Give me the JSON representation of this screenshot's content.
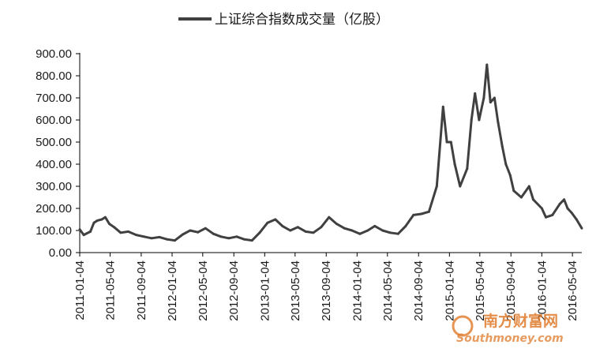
{
  "chart_data": {
    "type": "line",
    "title": "",
    "xlabel": "",
    "ylabel": "",
    "ylim": [
      0,
      900
    ],
    "yticks": [
      "0.00",
      "100.00",
      "200.00",
      "300.00",
      "400.00",
      "500.00",
      "600.00",
      "700.00",
      "800.00",
      "900.00"
    ],
    "xticks": [
      "2011-01-04",
      "2011-05-04",
      "2011-09-04",
      "2012-01-04",
      "2012-05-04",
      "2012-09-04",
      "2013-01-04",
      "2013-05-04",
      "2013-09-04",
      "2014-01-04",
      "2014-05-04",
      "2014-09-04",
      "2015-01-04",
      "2015-05-04",
      "2015-09-04",
      "2016-01-04",
      "2016-05-04"
    ],
    "x_range": [
      "2011-01-04",
      "2016-06-10"
    ],
    "grid": false,
    "legend_position": "top-center",
    "series": [
      {
        "name": "上证综合指数成交量（亿股）",
        "color": "#404040",
        "points": [
          [
            "2011-01-04",
            105
          ],
          [
            "2011-01-20",
            80
          ],
          [
            "2011-02-15",
            95
          ],
          [
            "2011-03-01",
            135
          ],
          [
            "2011-03-15",
            145
          ],
          [
            "2011-04-01",
            150
          ],
          [
            "2011-04-15",
            160
          ],
          [
            "2011-05-01",
            130
          ],
          [
            "2011-05-20",
            115
          ],
          [
            "2011-06-15",
            90
          ],
          [
            "2011-07-15",
            95
          ],
          [
            "2011-08-15",
            80
          ],
          [
            "2011-09-15",
            72
          ],
          [
            "2011-10-15",
            65
          ],
          [
            "2011-11-15",
            70
          ],
          [
            "2011-12-15",
            60
          ],
          [
            "2012-01-15",
            55
          ],
          [
            "2012-02-15",
            82
          ],
          [
            "2012-03-15",
            100
          ],
          [
            "2012-04-15",
            92
          ],
          [
            "2012-05-15",
            110
          ],
          [
            "2012-06-15",
            85
          ],
          [
            "2012-07-15",
            72
          ],
          [
            "2012-08-15",
            65
          ],
          [
            "2012-09-15",
            72
          ],
          [
            "2012-10-15",
            60
          ],
          [
            "2012-11-15",
            55
          ],
          [
            "2012-12-15",
            90
          ],
          [
            "2013-01-15",
            135
          ],
          [
            "2013-02-15",
            150
          ],
          [
            "2013-03-15",
            120
          ],
          [
            "2013-04-15",
            100
          ],
          [
            "2013-05-15",
            115
          ],
          [
            "2013-06-15",
            95
          ],
          [
            "2013-07-15",
            90
          ],
          [
            "2013-08-15",
            115
          ],
          [
            "2013-09-15",
            160
          ],
          [
            "2013-10-15",
            130
          ],
          [
            "2013-11-15",
            110
          ],
          [
            "2013-12-15",
            100
          ],
          [
            "2014-01-15",
            85
          ],
          [
            "2014-02-15",
            100
          ],
          [
            "2014-03-15",
            120
          ],
          [
            "2014-04-15",
            100
          ],
          [
            "2014-05-15",
            90
          ],
          [
            "2014-06-15",
            85
          ],
          [
            "2014-07-15",
            120
          ],
          [
            "2014-08-15",
            170
          ],
          [
            "2014-09-15",
            175
          ],
          [
            "2014-10-15",
            185
          ],
          [
            "2014-11-15",
            300
          ],
          [
            "2014-12-10",
            660
          ],
          [
            "2014-12-25",
            500
          ],
          [
            "2015-01-10",
            500
          ],
          [
            "2015-01-25",
            400
          ],
          [
            "2015-02-15",
            300
          ],
          [
            "2015-03-15",
            380
          ],
          [
            "2015-04-01",
            600
          ],
          [
            "2015-04-15",
            720
          ],
          [
            "2015-05-01",
            600
          ],
          [
            "2015-05-20",
            700
          ],
          [
            "2015-06-01",
            850
          ],
          [
            "2015-06-15",
            680
          ],
          [
            "2015-07-01",
            700
          ],
          [
            "2015-07-15",
            590
          ],
          [
            "2015-08-01",
            480
          ],
          [
            "2015-08-15",
            400
          ],
          [
            "2015-09-01",
            350
          ],
          [
            "2015-09-15",
            280
          ],
          [
            "2015-10-15",
            250
          ],
          [
            "2015-11-15",
            300
          ],
          [
            "2015-12-01",
            240
          ],
          [
            "2016-01-04",
            200
          ],
          [
            "2016-01-20",
            160
          ],
          [
            "2016-02-15",
            170
          ],
          [
            "2016-03-15",
            220
          ],
          [
            "2016-04-01",
            240
          ],
          [
            "2016-04-15",
            200
          ],
          [
            "2016-05-01",
            180
          ],
          [
            "2016-05-20",
            150
          ],
          [
            "2016-06-10",
            110
          ]
        ]
      }
    ]
  },
  "watermark": {
    "text_cn": "南方财富网",
    "text_en": "Southmoney.com"
  }
}
